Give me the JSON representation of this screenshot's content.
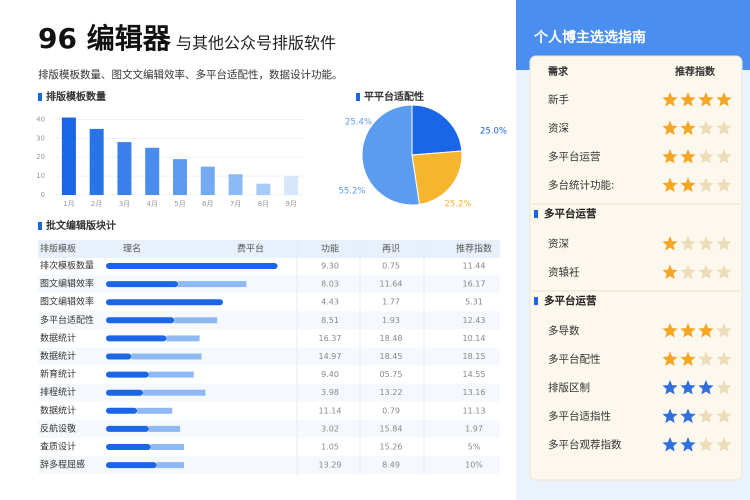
{
  "header": {
    "title": "96 编辑器",
    "subtitle": "与其他公众号排版软件",
    "description": "排版模板数量、图文文编辑效率、多平台适配性，数据设计功能。"
  },
  "chart_data": [
    {
      "type": "bar",
      "title": "排版模板数量",
      "categories": [
        "1月",
        "2月",
        "3月",
        "4月",
        "5月",
        "6月",
        "7月",
        "8月",
        "9月"
      ],
      "values": [
        41,
        35,
        28,
        25,
        19,
        15,
        11,
        6,
        10
      ],
      "colors": [
        "#1a66e6",
        "#2a74ea",
        "#3a80ec",
        "#4a8cee",
        "#5d9af0",
        "#74aaf2",
        "#8cbaf4",
        "#a8ccf7",
        "#d6e6fb"
      ],
      "ylim": [
        0,
        45
      ],
      "yticks": [
        0,
        10,
        20,
        30,
        40
      ],
      "grid": true
    },
    {
      "type": "pie",
      "title": "平平台适配性",
      "values": [
        25.0,
        25.2,
        55.2
      ],
      "value_labels": [
        "25.0%",
        "25.2%",
        "55.2%"
      ],
      "colors": [
        "#1a66e6",
        "#f6b52e",
        "#5b9cf0"
      ],
      "annotations": [
        "25.4%"
      ]
    }
  ],
  "table": {
    "title": "批文编辑版块计",
    "columns": [
      "排版模板",
      "理名",
      "费平台",
      "功能",
      "再识",
      "推荐指数"
    ],
    "bar_range": [
      0,
      100
    ],
    "rows": [
      {
        "name": "排次模板数量",
        "bar": [
          88,
          0
        ],
        "cells": [
          "9.30",
          "0.75",
          "11.44"
        ]
      },
      {
        "name": "图文编辑效率",
        "bar": [
          37,
          35
        ],
        "cells": [
          "8.03",
          "11.64",
          "16.17"
        ]
      },
      {
        "name": "图文编辑效率",
        "bar": [
          60,
          0
        ],
        "cells": [
          "4.43",
          "1.77",
          "5.31"
        ]
      },
      {
        "name": "多平台适配性",
        "bar": [
          35,
          22
        ],
        "cells": [
          "8.51",
          "1.93",
          "12.43"
        ]
      },
      {
        "name": "数据统计",
        "bar": [
          31,
          17
        ],
        "cells": [
          "16.37",
          "18.48",
          "10.14"
        ]
      },
      {
        "name": "数据统计",
        "bar": [
          13,
          36
        ],
        "cells": [
          "14.97",
          "18.45",
          "18.15"
        ]
      },
      {
        "name": "新育统计",
        "bar": [
          22,
          23
        ],
        "cells": [
          "9.40",
          "05.75",
          "14.55"
        ]
      },
      {
        "name": "排程统计",
        "bar": [
          19,
          32
        ],
        "cells": [
          "3.98",
          "13.22",
          "13.16"
        ]
      },
      {
        "name": "数据统计",
        "bar": [
          16,
          18
        ],
        "cells": [
          "11.14",
          "0.79",
          "11.13"
        ]
      },
      {
        "name": "反航设敬",
        "bar": [
          22,
          16
        ],
        "cells": [
          "3.02",
          "15.84",
          "1.97"
        ]
      },
      {
        "name": "查质设计",
        "bar": [
          23,
          17
        ],
        "cells": [
          "1.05",
          "15.26",
          "5%"
        ]
      },
      {
        "name": "辞多程屈感",
        "bar": [
          26,
          14
        ],
        "cells": [
          "13.29",
          "8.49",
          "10%"
        ]
      }
    ]
  },
  "sidebar": {
    "title": "个人博主选选指南",
    "columns": [
      "需求",
      "推荐指数"
    ],
    "groups": [
      {
        "items": [
          {
            "label": "新手",
            "rating": 4,
            "color": "#f5a623"
          },
          {
            "label": "资深",
            "rating": 2,
            "color": "#f5a623"
          },
          {
            "label": "多平台运营",
            "rating": 2,
            "color": "#f5a623"
          },
          {
            "label": "多台统计功能:",
            "rating": 2,
            "color": "#f5a623"
          }
        ]
      },
      {
        "title": "多平台运营",
        "items": [
          {
            "label": "资深",
            "rating": 1,
            "color": "#f5a623"
          },
          {
            "label": "资辕衽",
            "rating": 1,
            "color": "#f5a623"
          }
        ]
      },
      {
        "title": "多平台运营",
        "items": [
          {
            "label": "多导数",
            "rating": 3,
            "color": "#f5a623"
          },
          {
            "label": "多平台配性",
            "rating": 2,
            "color": "#f5a623"
          },
          {
            "label": "排版区制",
            "rating": 3,
            "color": "#2f6fe0"
          },
          {
            "label": "多平台适指性",
            "rating": 2,
            "color": "#2f6fe0"
          },
          {
            "label": "多平台观荐指数",
            "rating": 2,
            "color": "#2f6fe0"
          }
        ]
      }
    ]
  }
}
